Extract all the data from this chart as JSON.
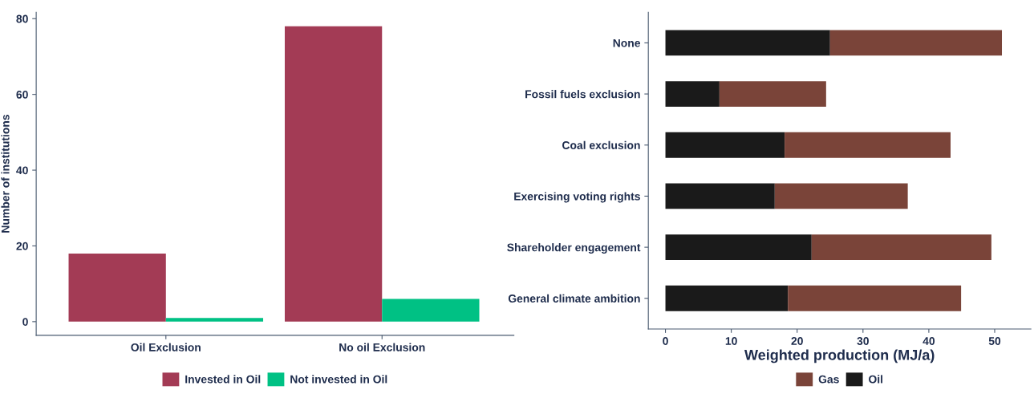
{
  "chart_data": [
    {
      "type": "bar",
      "ylabel": "Number of institutions",
      "categories": [
        "Oil Exclusion",
        "No oil Exclusion"
      ],
      "series": [
        {
          "name": "Invested in Oil",
          "color": "#a33b55",
          "values": [
            18,
            78
          ]
        },
        {
          "name": "Not invested in Oil",
          "color": "#00c184",
          "values": [
            1,
            6
          ]
        }
      ],
      "ylim": [
        -3.6,
        81.7
      ],
      "yticks": [
        0,
        20,
        40,
        60,
        80
      ],
      "grid": false,
      "legend": "bottom"
    },
    {
      "type": "bar",
      "orientation": "horizontal",
      "stacked": true,
      "xlabel": "Weighted production (MJ/a)",
      "categories": [
        "None",
        "Fossil fuels exclusion",
        "Coal exclusion",
        "Exercising voting rights",
        "Shareholder engagement",
        "General climate ambition"
      ],
      "series": [
        {
          "name": "Oil",
          "color": "#1a1a1a",
          "values": [
            25,
            8.2,
            18.1,
            16.6,
            22.2,
            18.6
          ]
        },
        {
          "name": "Gas",
          "color": "#7a4439",
          "values": [
            26.1,
            16.2,
            25.2,
            20.2,
            27.3,
            26.3
          ]
        }
      ],
      "xlim": [
        -2.6,
        55.5
      ],
      "xticks": [
        0,
        10,
        20,
        30,
        40,
        50
      ],
      "grid": false,
      "legend": "bottom"
    }
  ]
}
